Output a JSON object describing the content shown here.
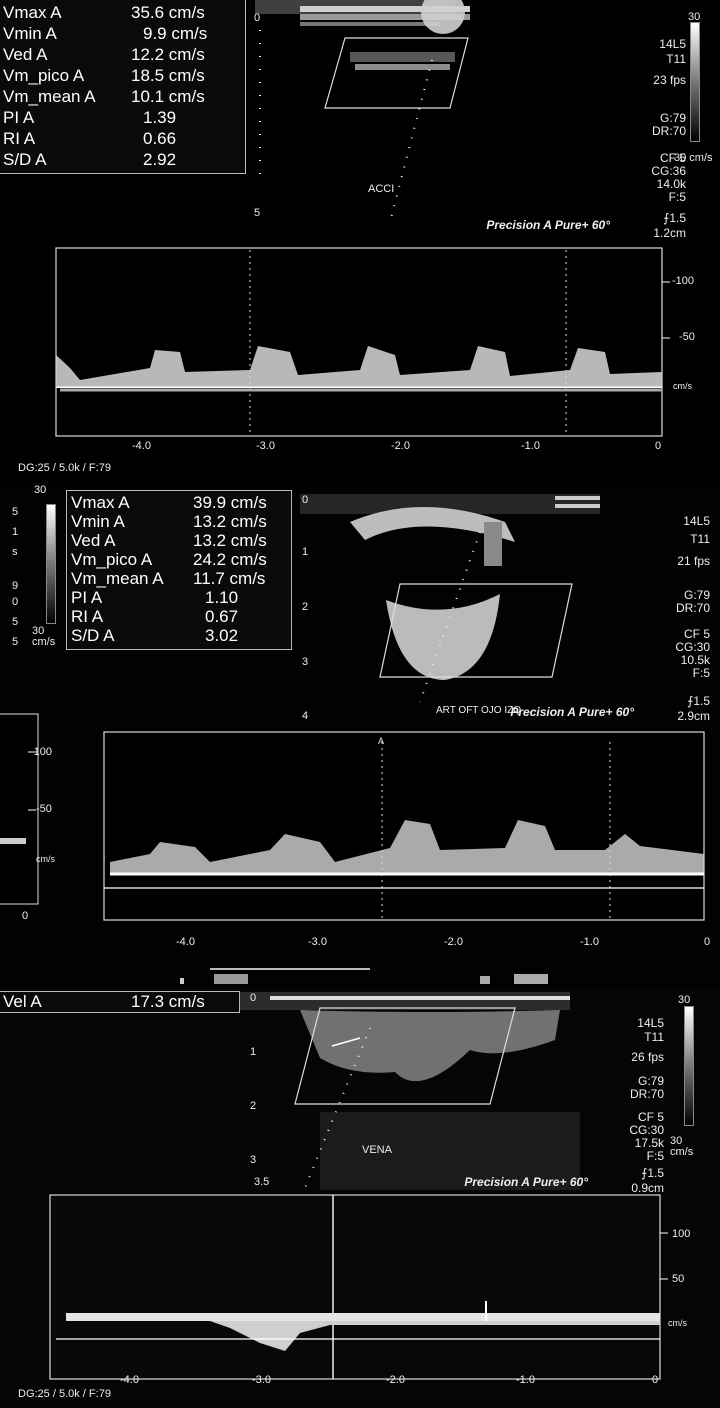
{
  "panel1": {
    "measurements": [
      {
        "label": "Vmax  A",
        "value": "35.6 cm/s"
      },
      {
        "label": "Vmin  A",
        "value": "9.9 cm/s"
      },
      {
        "label": "Ved  A",
        "value": "12.2 cm/s"
      },
      {
        "label": "Vm_pico A",
        "value": "18.5 cm/s"
      },
      {
        "label": "Vm_mean A",
        "value": "10.1 cm/s"
      },
      {
        "label": "PI  A",
        "value": "1.39"
      },
      {
        "label": "RI  A",
        "value": "0.66"
      },
      {
        "label": "S/D  A",
        "value": "2.92"
      }
    ],
    "depth_marks": [
      "0",
      "5"
    ],
    "vessel_label": "ACCI",
    "probe": "14L5",
    "preset": "T11",
    "fps": "23 fps",
    "gain": "G:79",
    "dr": "DR:70",
    "cf": "CF 5",
    "cg": "CG:36",
    "prf": "14.0k",
    "filter": "F:5",
    "angle_row": "Precision  A Pure+ 60°",
    "angle_val": "⨍1.5",
    "gate": "1.2cm",
    "scale_top": "30",
    "scale_bottom": "30 cm/s",
    "vel_ticks": [
      "-100",
      "-50",
      "cm/s"
    ],
    "time_ticks": [
      "-4.0",
      "-3.0",
      "-2.0",
      "-1.0",
      "0"
    ],
    "footer": "DG:25  / 5.0k   / F:79"
  },
  "panel2": {
    "measurements": [
      {
        "label": "Vmax  A",
        "value": "39.9 cm/s"
      },
      {
        "label": "Vmin  A",
        "value": "13.2 cm/s"
      },
      {
        "label": "Ved  A",
        "value": "13.2 cm/s"
      },
      {
        "label": "Vm_pico A",
        "value": "24.2 cm/s"
      },
      {
        "label": "Vm_mean A",
        "value": "11.7 cm/s"
      },
      {
        "label": "PI  A",
        "value": "1.10"
      },
      {
        "label": "RI  A",
        "value": "0.67"
      },
      {
        "label": "S/D  A",
        "value": "3.02"
      }
    ],
    "depth_marks": [
      "0",
      "1",
      "2",
      "3",
      "4"
    ],
    "vessel_label": "ART OFT OJO IZQ",
    "probe": "14L5",
    "preset": "T11",
    "fps": "21 fps",
    "gain": "G:79",
    "dr": "DR:70",
    "cf": "CF 5",
    "cg": "CG:30",
    "prf": "10.5k",
    "filter": "F:5",
    "angle_row": "Precision  A Pure+ 60°",
    "angle_val": "⨍1.5",
    "gate": "2.9cm",
    "scale_top": "30",
    "scale_bottom": "30 cm/s",
    "side_chars": [
      "5",
      "1",
      "s",
      "9",
      "0",
      "5",
      "5"
    ],
    "vel_ticks": [
      "-100",
      "-50",
      "cm/s",
      "0"
    ],
    "time_ticks": [
      "-4.0",
      "-3.0",
      "-2.0",
      "-1.0",
      "0"
    ],
    "cursor_label": "A"
  },
  "panel3": {
    "measurement": {
      "label": "Vel  A",
      "value": "17.3 cm/s"
    },
    "depth_marks": [
      "0",
      "1",
      "2",
      "3",
      "3.5"
    ],
    "vessel_label": "VENA",
    "probe": "14L5",
    "preset": "T11",
    "fps": "26 fps",
    "gain": "G:79",
    "dr": "DR:70",
    "cf": "CF 5",
    "cg": "CG:30",
    "prf": "17.5k",
    "filter": "F:5",
    "angle_row": "Precision  A Pure+ 60°",
    "angle_val": "⨍1.5",
    "gate": "0.9cm",
    "scale_top": "30",
    "scale_bottom": "30 cm/s",
    "vel_ticks": [
      "100",
      "50",
      "cm/s"
    ],
    "time_ticks": [
      "-4.0",
      "-3.0",
      "-2.0",
      "-1.0",
      "0"
    ],
    "footer": "DG:25  / 5.0k   / F:79"
  }
}
